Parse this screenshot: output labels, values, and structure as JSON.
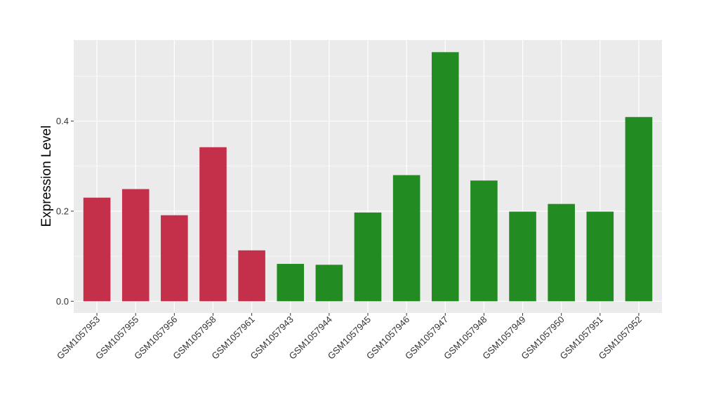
{
  "chart_data": {
    "type": "bar",
    "ylabel": "Expression Level",
    "xlabel": "",
    "categories": [
      "GSM1057953",
      "GSM1057955",
      "GSM1057956",
      "GSM1057958",
      "GSM1057961",
      "GSM1057943",
      "GSM1057944",
      "GSM1057945",
      "GSM1057946",
      "GSM1057947",
      "GSM1057948",
      "GSM1057949",
      "GSM1057950",
      "GSM1057951",
      "GSM1057952"
    ],
    "values": [
      0.23,
      0.249,
      0.191,
      0.342,
      0.113,
      0.083,
      0.081,
      0.197,
      0.28,
      0.553,
      0.268,
      0.199,
      0.216,
      0.199,
      0.409
    ],
    "bar_colors": [
      "#C4304A",
      "#C4304A",
      "#C4304A",
      "#C4304A",
      "#C4304A",
      "#228B22",
      "#228B22",
      "#228B22",
      "#228B22",
      "#228B22",
      "#228B22",
      "#228B22",
      "#228B22",
      "#228B22",
      "#228B22"
    ],
    "ylim": [
      -0.026,
      0.58
    ],
    "yticks": [
      0.0,
      0.2,
      0.4
    ],
    "ytick_labels": [
      "0.0",
      "0.2",
      "0.4"
    ],
    "grid": true,
    "legend": "none",
    "panel_background": "#EBEBEB",
    "gridline_color": "#FFFFFF"
  }
}
